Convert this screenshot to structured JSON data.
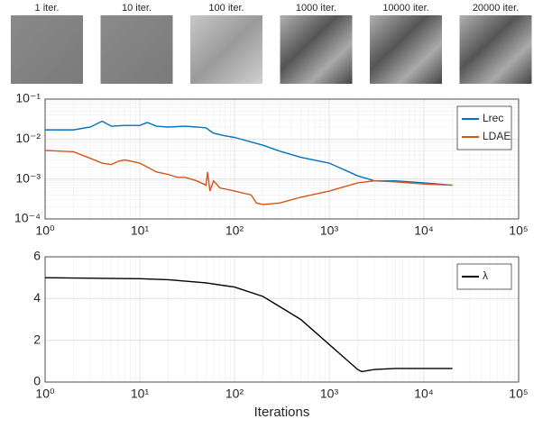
{
  "thumbnails": {
    "labels": [
      "1 iter.",
      "10 iter.",
      "100 iter.",
      "1000 iter.",
      "10000 iter.",
      "20000 iter."
    ]
  },
  "chart_data": [
    {
      "type": "line",
      "xscale": "log",
      "yscale": "log",
      "grid": true,
      "legend": "upper right",
      "xlim": [
        1,
        100000
      ],
      "ylim": [
        0.0001,
        0.1
      ],
      "xticks": [
        {
          "value": 1,
          "label": "10⁰"
        },
        {
          "value": 10,
          "label": "10¹"
        },
        {
          "value": 100,
          "label": "10²"
        },
        {
          "value": 1000,
          "label": "10³"
        },
        {
          "value": 10000,
          "label": "10⁴"
        },
        {
          "value": 100000,
          "label": "10⁵"
        }
      ],
      "yticks": [
        {
          "value": 0.0001,
          "label": "10⁻⁴"
        },
        {
          "value": 0.001,
          "label": "10⁻³"
        },
        {
          "value": 0.01,
          "label": "10⁻²"
        },
        {
          "value": 0.1,
          "label": "10⁻¹"
        }
      ],
      "series": [
        {
          "name": "Lrec",
          "color": "#0072bd",
          "x": [
            1,
            2,
            3,
            4,
            5,
            7,
            10,
            12,
            15,
            20,
            30,
            40,
            50,
            60,
            80,
            100,
            200,
            300,
            500,
            1000,
            2000,
            3000,
            5000,
            10000,
            20000
          ],
          "values": [
            0.017,
            0.017,
            0.02,
            0.028,
            0.021,
            0.022,
            0.022,
            0.026,
            0.021,
            0.02,
            0.021,
            0.02,
            0.019,
            0.014,
            0.012,
            0.011,
            0.007,
            0.005,
            0.0035,
            0.0025,
            0.0012,
            0.0009,
            0.0009,
            0.0008,
            0.0007
          ]
        },
        {
          "name": "LDAE",
          "color": "#d95319",
          "x": [
            1,
            2,
            3,
            4,
            5,
            6,
            7,
            10,
            15,
            20,
            25,
            30,
            40,
            50,
            52,
            55,
            60,
            70,
            100,
            150,
            170,
            200,
            300,
            500,
            1000,
            2000,
            3000,
            5000,
            10000,
            20000
          ],
          "values": [
            0.0052,
            0.0048,
            0.0033,
            0.0025,
            0.0023,
            0.0028,
            0.003,
            0.0025,
            0.0015,
            0.0013,
            0.0011,
            0.0011,
            0.0009,
            0.0007,
            0.0015,
            0.0005,
            0.0009,
            0.0006,
            0.0005,
            0.0004,
            0.00025,
            0.00023,
            0.00025,
            0.00035,
            0.0005,
            0.0008,
            0.0009,
            0.00085,
            0.00075,
            0.0007
          ]
        }
      ]
    },
    {
      "type": "line",
      "xscale": "log",
      "grid": true,
      "legend": "upper right",
      "xlabel": "Iterations",
      "xlim": [
        1,
        100000
      ],
      "ylim": [
        0,
        6
      ],
      "xticks": [
        {
          "value": 1,
          "label": "10⁰"
        },
        {
          "value": 10,
          "label": "10¹"
        },
        {
          "value": 100,
          "label": "10²"
        },
        {
          "value": 1000,
          "label": "10³"
        },
        {
          "value": 10000,
          "label": "10⁴"
        },
        {
          "value": 100000,
          "label": "10⁵"
        }
      ],
      "yticks": [
        0,
        2,
        4,
        6
      ],
      "series": [
        {
          "name": "λ",
          "color": "#000000",
          "x": [
            1,
            10,
            20,
            50,
            100,
            200,
            500,
            1000,
            2000,
            2200,
            3000,
            5000,
            10000,
            20000
          ],
          "values": [
            5,
            4.95,
            4.9,
            4.75,
            4.55,
            4.1,
            3.0,
            1.8,
            0.6,
            0.5,
            0.6,
            0.65,
            0.65,
            0.65
          ]
        }
      ]
    }
  ]
}
